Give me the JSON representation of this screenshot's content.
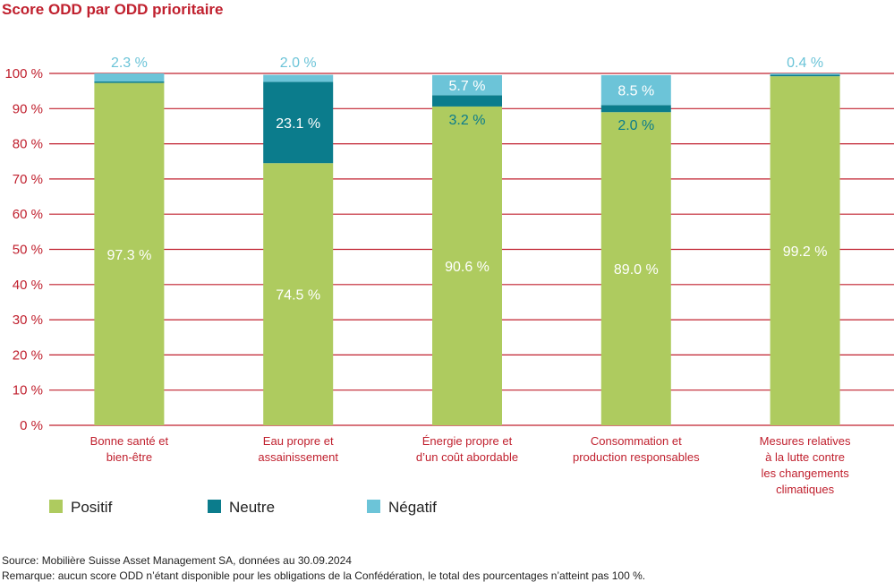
{
  "title": "Score ODD par ODD prioritaire",
  "colors": {
    "positif": "#aecb5f",
    "neutre": "#0b7c8c",
    "negatif": "#6cc4d8",
    "accent": "#c0202e",
    "grid": "#c0202e"
  },
  "chart_data": {
    "type": "bar",
    "stacked": true,
    "categories": [
      [
        "Bonne santé et",
        "bien-être"
      ],
      [
        "Eau propre et",
        "assainissement"
      ],
      [
        "Énergie propre et",
        "d’un coût abordable"
      ],
      [
        "Consommation et",
        "production responsables"
      ],
      [
        "Mesures relatives",
        "à la lutte contre",
        "les changements",
        "climatiques"
      ]
    ],
    "series": [
      {
        "key": "positif",
        "name": "Positif",
        "values": [
          97.3,
          74.5,
          90.6,
          89.0,
          99.2
        ],
        "labels": [
          "97.3 %",
          "74.5 %",
          "90.6 %",
          "89.0 %",
          "99.2 %"
        ]
      },
      {
        "key": "neutre",
        "name": "Neutre",
        "values": [
          0.4,
          23.1,
          3.2,
          2.0,
          0.4
        ],
        "labels": [
          "",
          "23.1 %",
          "3.2 %",
          "2.0 %",
          ""
        ]
      },
      {
        "key": "negatif",
        "name": "Négatif",
        "values": [
          2.3,
          2.0,
          5.7,
          8.5,
          0.4
        ],
        "labels": [
          "2.3 %",
          "2.0 %",
          "5.7 %",
          "8.5 %",
          "0.4 %"
        ]
      }
    ],
    "ylim": [
      0,
      100
    ],
    "yticks": [
      0,
      10,
      20,
      30,
      40,
      50,
      60,
      70,
      80,
      90,
      100
    ],
    "ytick_labels": [
      "0 %",
      "10 %",
      "20 %",
      "30 %",
      "40 %",
      "50 %",
      "60 %",
      "70 %",
      "80 %",
      "90 %",
      "100 %"
    ],
    "grid": true,
    "legend_position": "bottom-left"
  },
  "footnotes": {
    "source": "Source: Mobilière Suisse Asset Management SA, données au 30.09.2024",
    "note": "Remarque: aucun score ODD n’étant disponible pour les obligations de la Confédération, le total des pourcentages n’atteint pas 100 %."
  }
}
